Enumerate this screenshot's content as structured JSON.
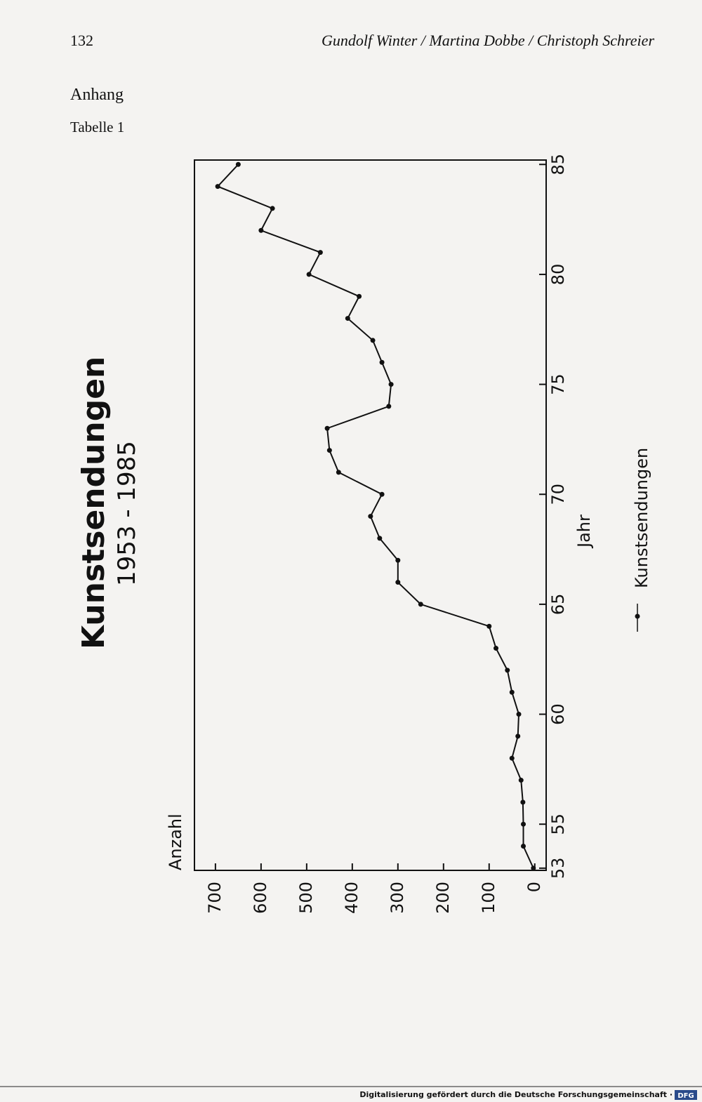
{
  "page_number": "132",
  "running_head": "Gundolf Winter / Martina Dobbe / Christoph Schreier",
  "section": "Anhang",
  "table_label": "Tabelle 1",
  "footer": "Digitalisierung gefördert durch die Deutsche Forschungsgemeinschaft ·",
  "footer_logo": "DFG",
  "chart_data": {
    "type": "line",
    "title": "Kunstsendungen",
    "subtitle": "1953 - 1985",
    "x_label": "Jahr",
    "y_label": "Anzahl",
    "x": [
      53,
      54,
      55,
      56,
      57,
      58,
      59,
      60,
      61,
      62,
      63,
      64,
      65,
      66,
      67,
      68,
      69,
      70,
      71,
      72,
      73,
      74,
      75,
      76,
      77,
      78,
      79,
      80,
      81,
      82,
      83,
      84,
      85
    ],
    "series": [
      {
        "name": "Kunstsendungen",
        "color": "#111111",
        "values": [
          3,
          25,
          25,
          26,
          30,
          50,
          37,
          35,
          50,
          60,
          85,
          100,
          250,
          300,
          300,
          340,
          360,
          335,
          430,
          450,
          455,
          320,
          315,
          335,
          355,
          410,
          385,
          495,
          470,
          600,
          575,
          695,
          650
        ]
      }
    ],
    "xlim": [
      52.9,
      85.2
    ],
    "xticks": [
      53,
      55,
      60,
      65,
      70,
      75,
      80,
      85
    ],
    "ylim": [
      -25,
      746
    ],
    "yticks": [
      0,
      100,
      200,
      300,
      400,
      500,
      600,
      700
    ],
    "grid": false
  }
}
